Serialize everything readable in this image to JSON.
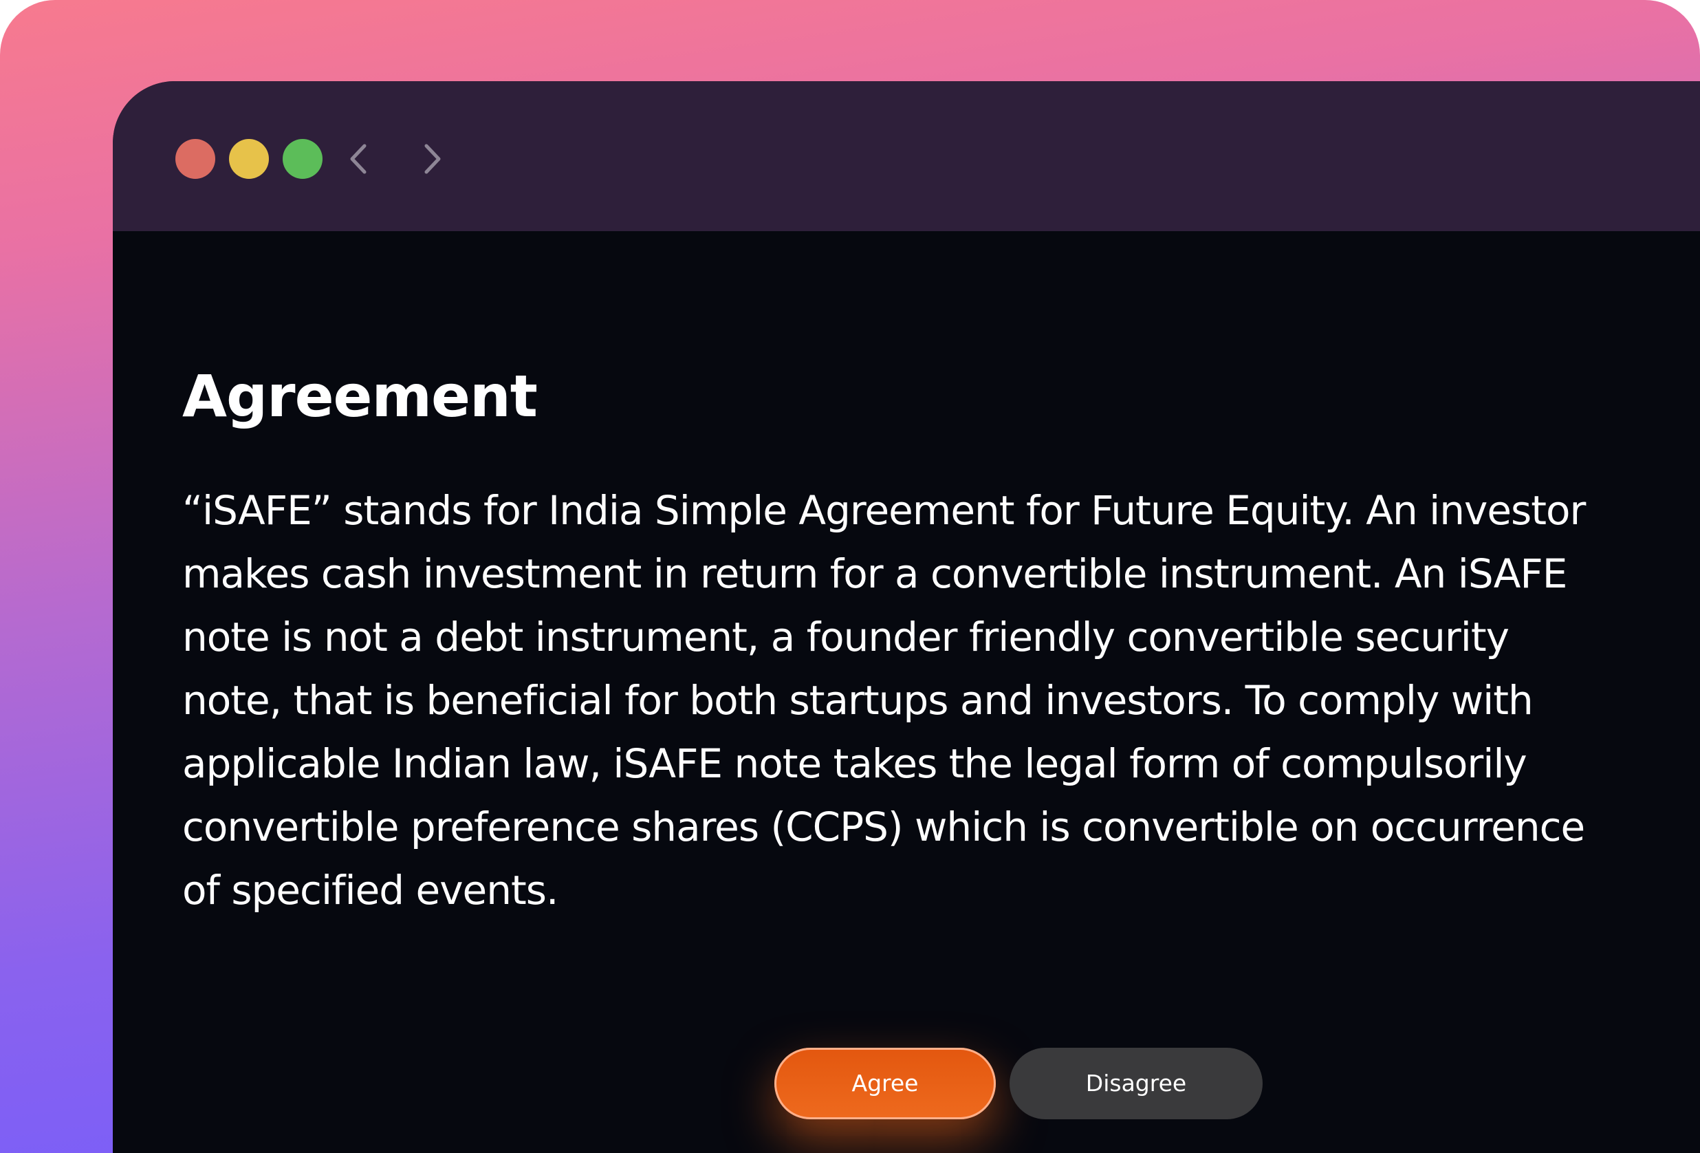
{
  "window": {
    "controls": [
      "close",
      "minimize",
      "maximize"
    ],
    "nav": {
      "back_icon": "chevron-left-icon",
      "forward_icon": "chevron-right-icon"
    }
  },
  "agreement": {
    "title": "Agreement",
    "body": "“iSAFE” stands for India Simple Agreement for Future Equity. An investor makes cash investment in return for a convertible instrument. An iSAFE note is not a debt instrument, a founder friendly convertible security note, that is beneficial for both startups and investors. To comply with applicable Indian law, iSAFE note takes the legal form of compulsorily convertible preference shares (CCPS) which is convertible on occurrence of specified events."
  },
  "actions": {
    "agree_label": "Agree",
    "disagree_label": "Disagree"
  },
  "colors": {
    "accent": "#E85D15",
    "window_bg": "#06080F",
    "titlebar_bg": "#2E1F3A",
    "close": "#DC6C62",
    "minimize": "#E7C24A",
    "maximize": "#5CBD59"
  }
}
